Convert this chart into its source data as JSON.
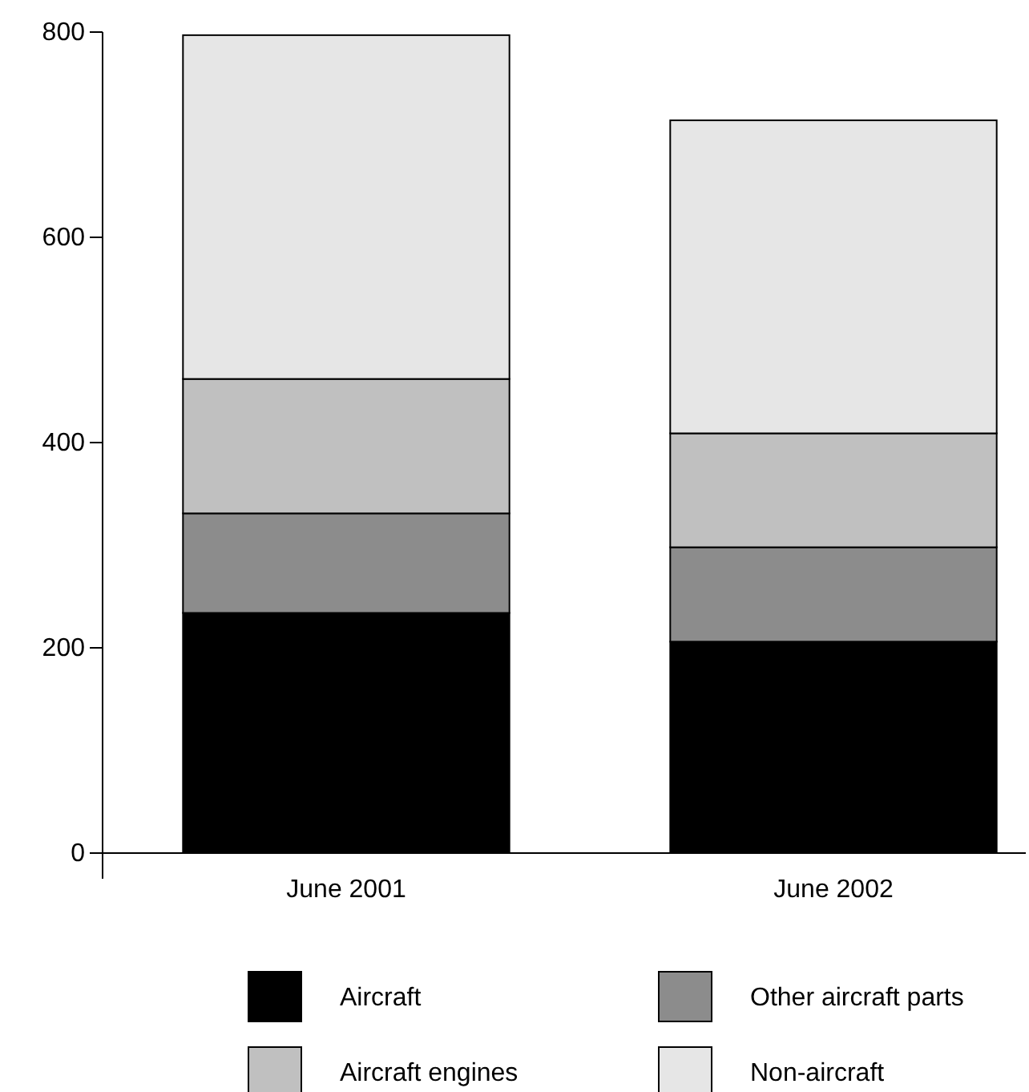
{
  "chart_data": {
    "type": "bar",
    "stacked": true,
    "categories": [
      "June 2001",
      "June 2002"
    ],
    "series": [
      {
        "name": "Aircraft",
        "color": "#000000",
        "values": [
          234,
          206
        ]
      },
      {
        "name": "Other aircraft parts",
        "color": "#8c8c8c",
        "values": [
          97,
          92
        ]
      },
      {
        "name": "Aircraft engines",
        "color": "#c0c0c0",
        "values": [
          131,
          111
        ]
      },
      {
        "name": "Non-aircraft",
        "color": "#e6e6e6",
        "values": [
          335,
          305
        ]
      }
    ],
    "ylim": [
      0,
      800
    ],
    "yticks": [
      0,
      200,
      400,
      600,
      800
    ],
    "grid": false,
    "legend": "bottom"
  }
}
